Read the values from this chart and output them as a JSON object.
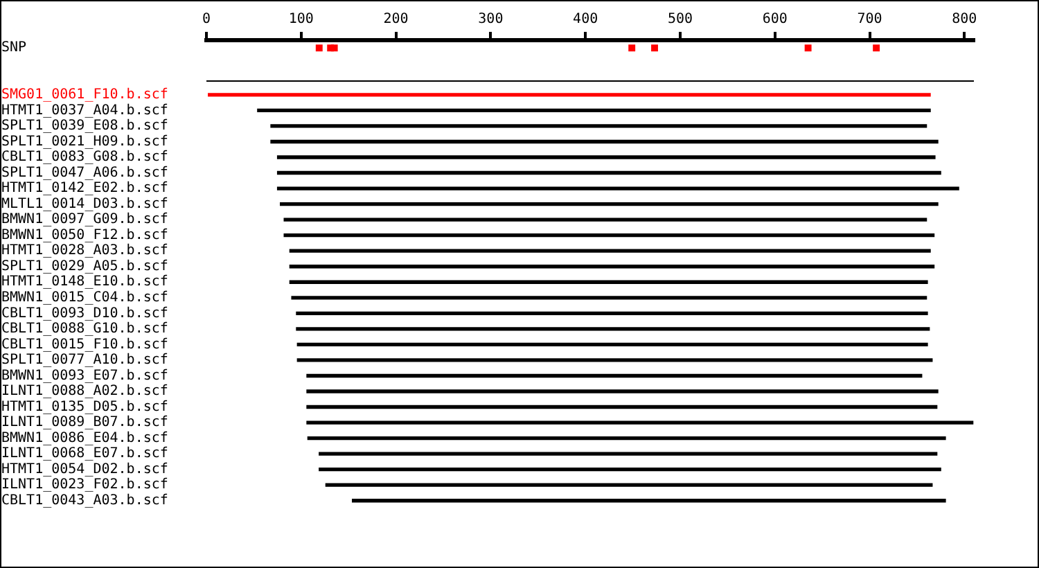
{
  "chart_data": {
    "type": "bar",
    "orientation": "horizontal",
    "grid": false,
    "categories": [
      "SNP",
      null,
      null,
      "SMG01_0061_F10.b.scf",
      "HTMT1_0037_A04.b.scf",
      "SPLT1_0039_E08.b.scf",
      "SPLT1_0021_H09.b.scf",
      "CBLT1_0083_G08.b.scf",
      "SPLT1_0047_A06.b.scf",
      "HTMT1_0142_E02.b.scf",
      "MLTL1_0014_D03.b.scf",
      "BMWN1_0097_G09.b.scf",
      "BMWN1_0050_F12.b.scf",
      "HTMT1_0028_A03.b.scf",
      "SPLT1_0029_A05.b.scf",
      "HTMT1_0148_E10.b.scf",
      "BMWN1_0015_C04.b.scf",
      "CBLT1_0093_D10.b.scf",
      "CBLT1_0088_G10.b.scf",
      "CBLT1_0015_F10.b.scf",
      "SPLT1_0077_A10.b.scf",
      "BMWN1_0093_E07.b.scf",
      "ILNT1_0088_A02.b.scf",
      "HTMT1_0135_D05.b.scf",
      "ILNT1_0089_B07.b.scf",
      "BMWN1_0086_E04.b.scf",
      "ILNT1_0068_E07.b.scf",
      "HTMT1_0054_D02.b.scf",
      "ILNT1_0023_F02.b.scf",
      "CBLT1_0043_A03.b.scf"
    ],
    "xlim": [
      0,
      810
    ],
    "xticks": [
      0,
      100,
      200,
      300,
      400,
      500,
      600,
      700,
      800
    ],
    "series": [
      {
        "base": [
          null,
          null,
          null,
          2,
          54,
          68,
          68,
          75,
          75,
          75,
          78,
          82,
          82,
          88,
          88,
          88,
          90,
          95,
          95,
          96,
          96,
          106,
          106,
          106,
          106,
          107,
          119,
          119,
          126,
          154
        ],
        "values": [
          null,
          null,
          null,
          762,
          710,
          692,
          704,
          694,
          700,
          719,
          694,
          678,
          686,
          676,
          680,
          673,
          670,
          666,
          668,
          665,
          670,
          649,
          666,
          665,
          703,
          673,
          652,
          656,
          640,
          626
        ],
        "colors": [
          "#000000",
          "#000000",
          "#000000",
          "#ff0000",
          "#000000",
          "#000000",
          "#000000",
          "#000000",
          "#000000",
          "#000000",
          "#000000",
          "#000000",
          "#000000",
          "#000000",
          "#000000",
          "#000000",
          "#000000",
          "#000000",
          "#000000",
          "#000000",
          "#000000",
          "#000000",
          "#000000",
          "#000000",
          "#000000",
          "#000000",
          "#000000",
          "#000000",
          "#000000",
          "#000000"
        ]
      },
      {
        "type": "scatter",
        "marker": "square",
        "color": "#ff0000",
        "values": [
          119,
          null,
          null,
          null,
          null,
          null,
          null,
          null,
          null,
          null,
          null,
          null,
          null,
          null,
          null,
          null,
          null,
          null,
          null,
          null,
          null,
          null,
          null,
          null,
          null,
          null,
          null,
          null,
          null,
          null
        ]
      },
      {
        "type": "scatter",
        "marker": "square",
        "color": "#ff0000",
        "values": [
          131,
          null,
          null,
          null,
          null,
          null,
          null,
          null,
          null,
          null,
          null,
          null,
          null,
          null,
          null,
          null,
          null,
          null,
          null,
          null,
          null,
          null,
          null,
          null,
          null,
          null,
          null,
          null,
          null,
          null
        ]
      },
      {
        "type": "scatter",
        "marker": "square",
        "color": "#ff0000",
        "values": [
          135,
          null,
          null,
          null,
          null,
          null,
          null,
          null,
          null,
          null,
          null,
          null,
          null,
          null,
          null,
          null,
          null,
          null,
          null,
          null,
          null,
          null,
          null,
          null,
          null,
          null,
          null,
          null,
          null,
          null
        ]
      },
      {
        "type": "scatter",
        "marker": "square",
        "color": "#ff0000",
        "values": [
          449,
          null,
          null,
          null,
          null,
          null,
          null,
          null,
          null,
          null,
          null,
          null,
          null,
          null,
          null,
          null,
          null,
          null,
          null,
          null,
          null,
          null,
          null,
          null,
          null,
          null,
          null,
          null,
          null,
          null
        ]
      },
      {
        "type": "scatter",
        "marker": "square",
        "color": "#ff0000",
        "values": [
          473,
          null,
          null,
          null,
          null,
          null,
          null,
          null,
          null,
          null,
          null,
          null,
          null,
          null,
          null,
          null,
          null,
          null,
          null,
          null,
          null,
          null,
          null,
          null,
          null,
          null,
          null,
          null,
          null,
          null
        ]
      },
      {
        "type": "scatter",
        "marker": "square",
        "color": "#ff0000",
        "values": [
          635,
          null,
          null,
          null,
          null,
          null,
          null,
          null,
          null,
          null,
          null,
          null,
          null,
          null,
          null,
          null,
          null,
          null,
          null,
          null,
          null,
          null,
          null,
          null,
          null,
          null,
          null,
          null,
          null,
          null
        ]
      },
      {
        "type": "scatter",
        "marker": "square",
        "color": "#ff0000",
        "values": [
          707,
          null,
          null,
          null,
          null,
          null,
          null,
          null,
          null,
          null,
          null,
          null,
          null,
          null,
          null,
          null,
          null,
          null,
          null,
          null,
          null,
          null,
          null,
          null,
          null,
          null,
          null,
          null,
          null,
          null
        ]
      }
    ]
  }
}
